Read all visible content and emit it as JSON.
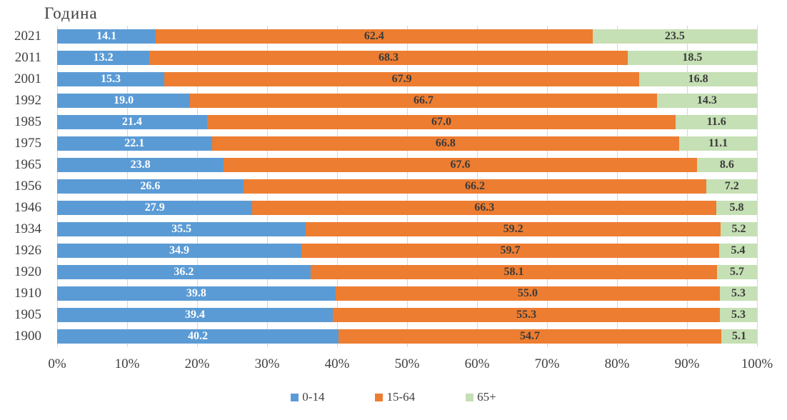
{
  "chart_data": {
    "type": "bar",
    "orientation": "horizontal",
    "stacked": true,
    "title": "Година",
    "categories": [
      "2021",
      "2011",
      "2001",
      "1992",
      "1985",
      "1975",
      "1965",
      "1956",
      "1946",
      "1934",
      "1926",
      "1920",
      "1910",
      "1905",
      "1900"
    ],
    "series": [
      {
        "name": "0-14",
        "color": "#5B9BD5",
        "label_color": "#FFFFFF",
        "values": [
          14.1,
          13.2,
          15.3,
          19.0,
          21.4,
          22.1,
          23.8,
          26.6,
          27.9,
          35.5,
          34.9,
          36.2,
          39.8,
          39.4,
          40.2
        ]
      },
      {
        "name": "15-64",
        "color": "#ED7D31",
        "label_color": "#3B3B3B",
        "values": [
          62.4,
          68.3,
          67.9,
          66.7,
          67.0,
          66.8,
          67.6,
          66.2,
          66.3,
          59.2,
          59.7,
          58.1,
          55.0,
          55.3,
          54.7
        ]
      },
      {
        "name": "65+",
        "color": "#C5E0B4",
        "label_color": "#3B3B3B",
        "values": [
          23.5,
          18.5,
          16.8,
          14.3,
          11.6,
          11.1,
          8.6,
          7.2,
          5.8,
          5.2,
          5.4,
          5.7,
          5.3,
          5.3,
          5.1
        ]
      }
    ],
    "x_axis": {
      "min": 0,
      "max": 100,
      "ticks": [
        "0%",
        "10%",
        "20%",
        "30%",
        "40%",
        "50%",
        "60%",
        "70%",
        "80%",
        "90%",
        "100%"
      ]
    },
    "legend": {
      "position": "bottom",
      "items": [
        "0-14",
        "15-64",
        "65+"
      ]
    },
    "grid": true,
    "gridline_color": "#D6D6D6",
    "label_decimals": 1
  }
}
